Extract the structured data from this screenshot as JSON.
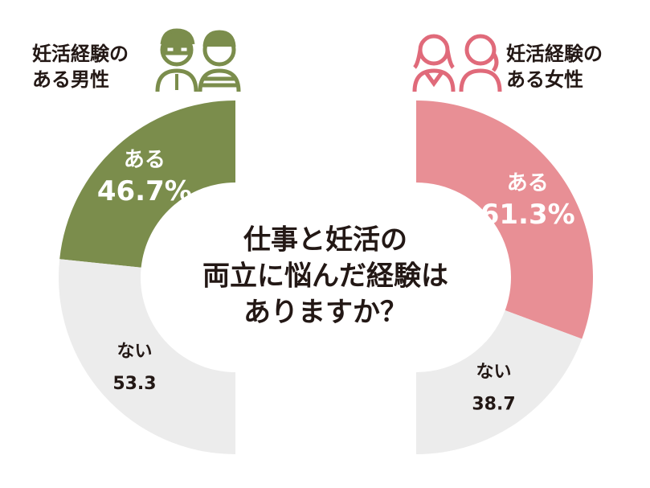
{
  "question": [
    "仕事と妊活の",
    "両立に悩んだ経験は",
    "ありますか？"
  ],
  "chart_data": [
    {
      "type": "pie",
      "title": [
        "妊活経験の",
        "ある男性"
      ],
      "categories": [
        "ある",
        "ない"
      ],
      "values": [
        46.7,
        53.3
      ],
      "value_labels": [
        "46.7%",
        "53.3"
      ],
      "colors": [
        "#7b8d4c",
        "#ececec"
      ]
    },
    {
      "type": "pie",
      "title": [
        "妊活経験の",
        "ある女性"
      ],
      "categories": [
        "ある",
        "ない"
      ],
      "values": [
        61.3,
        38.7
      ],
      "value_labels": [
        "61.3%",
        "38.7"
      ],
      "colors": [
        "#e88f95",
        "#ececec"
      ]
    }
  ]
}
